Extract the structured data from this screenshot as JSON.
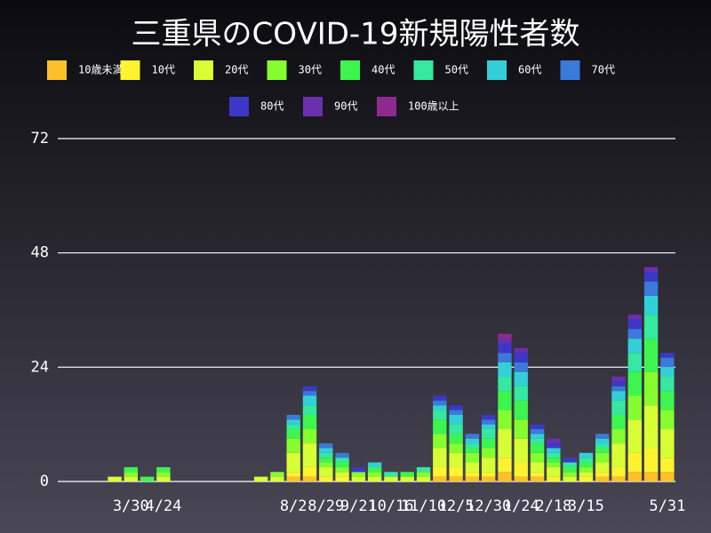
{
  "chart_data": {
    "type": "stacked_bar",
    "title": "三重県のCOVID-19新規陽性者数",
    "categories": [
      null,
      null,
      null,
      null,
      "3/30",
      null,
      "4/24",
      null,
      null,
      null,
      null,
      null,
      null,
      null,
      "8/2",
      null,
      "8/29",
      null,
      "9/21",
      null,
      "10/16",
      null,
      "11/10",
      null,
      "12/5",
      null,
      "12/30",
      null,
      "1/24",
      null,
      "2/18",
      null,
      "3/15",
      null,
      null,
      null,
      null,
      "5/31"
    ],
    "ylim": [
      0,
      72
    ],
    "yticks": [
      0,
      24,
      48,
      72
    ],
    "grid": true,
    "series": [
      {
        "name": "10歳未満",
        "color": "#fcc02a",
        "values": [
          0,
          0,
          0,
          0,
          0,
          0,
          0,
          0,
          0,
          0,
          0,
          0,
          0,
          0,
          1,
          1,
          0,
          0,
          0,
          0,
          0,
          0,
          0,
          1,
          1,
          1,
          1,
          2,
          1,
          1,
          0,
          0,
          0,
          1,
          1,
          2,
          2,
          2
        ]
      },
      {
        "name": "10代",
        "color": "#fef32e",
        "values": [
          0,
          0,
          0,
          0,
          0,
          0,
          0,
          0,
          0,
          0,
          0,
          0,
          0,
          0,
          1,
          2,
          1,
          1,
          0,
          0,
          0,
          0,
          0,
          2,
          2,
          1,
          1,
          3,
          3,
          1,
          1,
          0,
          1,
          1,
          2,
          4,
          5,
          3
        ]
      },
      {
        "name": "20代",
        "color": "#d8ff35",
        "values": [
          0,
          0,
          0,
          1,
          1,
          0,
          1,
          0,
          0,
          0,
          0,
          0,
          1,
          1,
          4,
          5,
          2,
          1,
          1,
          1,
          1,
          1,
          1,
          4,
          3,
          2,
          3,
          6,
          5,
          2,
          2,
          1,
          1,
          2,
          5,
          7,
          9,
          6
        ]
      },
      {
        "name": "30代",
        "color": "#86fd2f",
        "values": [
          0,
          0,
          0,
          0,
          1,
          0,
          1,
          0,
          0,
          0,
          0,
          0,
          0,
          1,
          3,
          3,
          1,
          1,
          1,
          1,
          0,
          0,
          1,
          3,
          2,
          2,
          2,
          4,
          4,
          2,
          1,
          1,
          1,
          2,
          3,
          5,
          7,
          4
        ]
      },
      {
        "name": "40代",
        "color": "#3ef550",
        "values": [
          0,
          0,
          0,
          0,
          1,
          1,
          1,
          0,
          0,
          0,
          0,
          0,
          0,
          0,
          2,
          3,
          1,
          1,
          0,
          1,
          0,
          1,
          0,
          3,
          2,
          1,
          2,
          4,
          4,
          2,
          1,
          1,
          1,
          1,
          3,
          5,
          7,
          4
        ]
      },
      {
        "name": "50代",
        "color": "#36e8a0",
        "values": [
          0,
          0,
          0,
          0,
          0,
          0,
          0,
          0,
          0,
          0,
          0,
          0,
          0,
          0,
          1,
          2,
          1,
          1,
          0,
          0,
          1,
          0,
          1,
          2,
          2,
          1,
          2,
          3,
          3,
          1,
          1,
          1,
          1,
          1,
          3,
          4,
          5,
          3
        ]
      },
      {
        "name": "60代",
        "color": "#33cfd6",
        "values": [
          0,
          0,
          0,
          0,
          0,
          0,
          0,
          0,
          0,
          0,
          0,
          0,
          0,
          0,
          1,
          2,
          1,
          0,
          0,
          1,
          0,
          0,
          0,
          1,
          2,
          1,
          1,
          3,
          3,
          1,
          1,
          0,
          1,
          1,
          2,
          3,
          4,
          2
        ]
      },
      {
        "name": "70代",
        "color": "#3a7ad8",
        "values": [
          0,
          0,
          0,
          0,
          0,
          0,
          0,
          0,
          0,
          0,
          0,
          0,
          0,
          0,
          1,
          1,
          1,
          1,
          0,
          0,
          0,
          0,
          0,
          1,
          1,
          1,
          1,
          2,
          2,
          1,
          0,
          0,
          0,
          1,
          1,
          2,
          3,
          2
        ]
      },
      {
        "name": "80代",
        "color": "#3b38c8",
        "values": [
          0,
          0,
          0,
          0,
          0,
          0,
          0,
          0,
          0,
          0,
          0,
          0,
          0,
          0,
          0,
          1,
          0,
          0,
          1,
          0,
          0,
          0,
          0,
          1,
          1,
          0,
          1,
          2,
          2,
          1,
          1,
          1,
          0,
          0,
          1,
          2,
          2,
          1
        ]
      },
      {
        "name": "90代",
        "color": "#6a30b0",
        "values": [
          0,
          0,
          0,
          0,
          0,
          0,
          0,
          0,
          0,
          0,
          0,
          0,
          0,
          0,
          0,
          0,
          0,
          0,
          0,
          0,
          0,
          0,
          0,
          0,
          0,
          0,
          0,
          1,
          1,
          0,
          1,
          0,
          0,
          0,
          1,
          1,
          1,
          0
        ]
      },
      {
        "name": "100歳以上",
        "color": "#8e2a8e",
        "values": [
          0,
          0,
          0,
          0,
          0,
          0,
          0,
          0,
          0,
          0,
          0,
          0,
          0,
          0,
          0,
          0,
          0,
          0,
          0,
          0,
          0,
          0,
          0,
          0,
          0,
          0,
          0,
          1,
          0,
          0,
          0,
          0,
          0,
          0,
          0,
          0,
          0,
          0
        ]
      }
    ]
  }
}
